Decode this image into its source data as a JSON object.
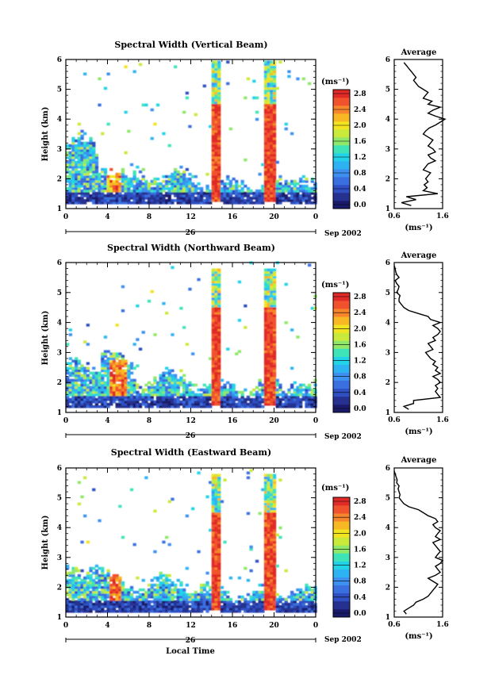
{
  "chart_data": [
    {
      "type": "heatmap",
      "title": "Spectral Width (Vertical Beam)",
      "ylabel": "Height (km)",
      "x_ticks": [
        "0",
        "4",
        "8",
        "12",
        "16",
        "20",
        "0"
      ],
      "xlim": [
        0,
        24
      ],
      "y_ticks": [
        "1",
        "2",
        "3",
        "4",
        "5",
        "6"
      ],
      "ylim": [
        1,
        6
      ],
      "date_label": "26",
      "month_label": "Sep 2002",
      "colorbar": {
        "unit": "(ms⁻¹)",
        "min": 0.0,
        "max": 2.8,
        "labels": [
          "0.0",
          "0.4",
          "0.8",
          "1.2",
          "1.6",
          "2.0",
          "2.4",
          "2.8"
        ]
      },
      "average": {
        "title": "Average",
        "xlabel": "(ms⁻¹)",
        "x_ticks": [
          "0.6",
          "1.6"
        ],
        "xlim": [
          0.6,
          1.6
        ],
        "y_ticks": [
          "1",
          "2",
          "3",
          "4",
          "5",
          "6"
        ],
        "heights": [
          1.1,
          1.2,
          1.3,
          1.4,
          1.5,
          1.6,
          1.7,
          1.8,
          1.9,
          2.0,
          2.1,
          2.2,
          2.3,
          2.4,
          2.5,
          2.6,
          2.7,
          2.8,
          2.9,
          3.0,
          3.1,
          3.2,
          3.3,
          3.4,
          3.5,
          3.6,
          3.7,
          3.8,
          3.9,
          4.0,
          4.1,
          4.2,
          4.3,
          4.4,
          4.5,
          4.6,
          4.7,
          4.8,
          4.9,
          5.0,
          5.1,
          5.2,
          5.3,
          5.4,
          5.5,
          5.6,
          5.7,
          5.8,
          5.9
        ],
        "values": [
          0.95,
          0.75,
          1.05,
          0.85,
          1.5,
          1.2,
          1.28,
          1.22,
          1.3,
          1.25,
          1.3,
          1.35,
          1.2,
          1.25,
          1.3,
          1.45,
          1.35,
          1.3,
          1.45,
          1.4,
          1.3,
          1.35,
          1.4,
          1.3,
          1.2,
          1.25,
          1.32,
          1.45,
          1.55,
          1.65,
          1.45,
          1.3,
          1.4,
          1.55,
          1.3,
          1.38,
          1.2,
          1.25,
          1.3,
          1.2,
          1.1,
          1.05,
          1.0,
          1.05,
          1.0,
          0.95,
          0.9,
          0.85,
          0.8
        ]
      }
    },
    {
      "type": "heatmap",
      "title": "Spectral Width (Northward Beam)",
      "ylabel": "Height (km)",
      "x_ticks": [
        "0",
        "4",
        "8",
        "12",
        "16",
        "20",
        "0"
      ],
      "xlim": [
        0,
        24
      ],
      "y_ticks": [
        "1",
        "2",
        "3",
        "4",
        "5",
        "6"
      ],
      "ylim": [
        1,
        6
      ],
      "date_label": "26",
      "month_label": "Sep 2002",
      "colorbar": {
        "unit": "(ms⁻¹)",
        "min": 0.0,
        "max": 2.8,
        "labels": [
          "0.0",
          "0.4",
          "0.8",
          "1.2",
          "1.6",
          "2.0",
          "2.4",
          "2.8"
        ]
      },
      "average": {
        "title": "Average",
        "xlabel": "(ms⁻¹)",
        "x_ticks": [
          "0.6",
          "1.6"
        ],
        "xlim": [
          0.6,
          1.6
        ],
        "y_ticks": [
          "1",
          "2",
          "3",
          "4",
          "5",
          "6"
        ],
        "heights": [
          1.1,
          1.2,
          1.3,
          1.4,
          1.5,
          1.6,
          1.7,
          1.8,
          1.9,
          2.0,
          2.1,
          2.2,
          2.3,
          2.4,
          2.5,
          2.6,
          2.7,
          2.8,
          2.9,
          3.0,
          3.1,
          3.2,
          3.3,
          3.4,
          3.5,
          3.6,
          3.7,
          3.8,
          3.9,
          4.0,
          4.1,
          4.2,
          4.3,
          4.4,
          4.5,
          4.6,
          4.7,
          4.8,
          4.9,
          5.0,
          5.1,
          5.2,
          5.3,
          5.4,
          5.5,
          5.6,
          5.7,
          5.8,
          5.9
        ],
        "values": [
          0.9,
          0.8,
          1.0,
          1.0,
          1.55,
          1.5,
          1.45,
          1.5,
          1.45,
          1.55,
          1.5,
          1.4,
          1.55,
          1.45,
          1.5,
          1.4,
          1.45,
          1.35,
          1.3,
          1.25,
          1.4,
          1.35,
          1.3,
          1.45,
          1.4,
          1.5,
          1.55,
          1.5,
          1.4,
          1.55,
          1.35,
          1.3,
          1.1,
          0.9,
          0.8,
          0.75,
          0.7,
          0.7,
          0.72,
          0.65,
          0.68,
          0.7,
          0.65,
          0.62,
          0.7,
          0.65,
          0.63,
          0.62,
          0.6
        ]
      }
    },
    {
      "type": "heatmap",
      "title": "Spectral Width (Eastward Beam)",
      "ylabel": "Height (km)",
      "xlabel": "Local Time",
      "x_ticks": [
        "0",
        "4",
        "8",
        "12",
        "16",
        "20",
        "0"
      ],
      "xlim": [
        0,
        24
      ],
      "y_ticks": [
        "1",
        "2",
        "3",
        "4",
        "5",
        "6"
      ],
      "ylim": [
        1,
        6
      ],
      "date_label": "26",
      "month_label": "Sep 2002",
      "colorbar": {
        "unit": "(ms⁻¹)",
        "min": 0.0,
        "max": 2.8,
        "labels": [
          "0.0",
          "0.4",
          "0.8",
          "1.2",
          "1.6",
          "2.0",
          "2.4",
          "2.8"
        ]
      },
      "average": {
        "title": "Average",
        "xlabel": "(ms⁻¹)",
        "x_ticks": [
          "0.6",
          "1.6"
        ],
        "xlim": [
          0.6,
          1.6
        ],
        "y_ticks": [
          "1",
          "2",
          "3",
          "4",
          "5",
          "6"
        ],
        "heights": [
          1.1,
          1.2,
          1.3,
          1.4,
          1.5,
          1.6,
          1.7,
          1.8,
          1.9,
          2.0,
          2.1,
          2.2,
          2.3,
          2.4,
          2.5,
          2.6,
          2.7,
          2.8,
          2.9,
          3.0,
          3.1,
          3.2,
          3.3,
          3.4,
          3.5,
          3.6,
          3.7,
          3.8,
          3.9,
          4.0,
          4.1,
          4.2,
          4.3,
          4.4,
          4.5,
          4.6,
          4.7,
          4.8,
          4.9,
          5.0,
          5.1,
          5.2,
          5.3,
          5.4,
          5.5,
          5.6,
          5.7,
          5.8,
          5.9
        ],
        "values": [
          0.85,
          0.8,
          0.9,
          1.0,
          1.05,
          1.2,
          1.3,
          1.35,
          1.4,
          1.45,
          1.5,
          1.4,
          1.3,
          1.45,
          1.55,
          1.5,
          1.45,
          1.55,
          1.6,
          1.45,
          1.5,
          1.55,
          1.5,
          1.45,
          1.4,
          1.55,
          1.45,
          1.5,
          1.55,
          1.45,
          1.4,
          1.5,
          1.45,
          1.3,
          1.2,
          1.1,
          0.9,
          0.8,
          0.75,
          0.7,
          0.72,
          0.7,
          0.68,
          0.7,
          0.65,
          0.66,
          0.64,
          0.62,
          0.6
        ]
      }
    }
  ]
}
